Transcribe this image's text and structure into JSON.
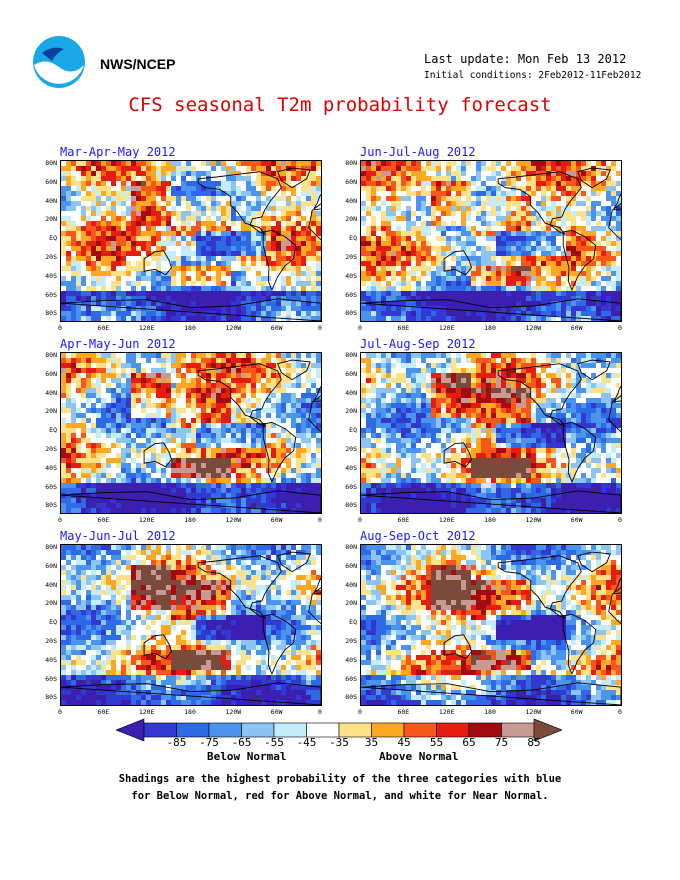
{
  "header": {
    "org": "NWS/NCEP",
    "last_update": "Last update: Mon Feb 13 2012",
    "initial_conditions": "Initial conditions: 2Feb2012-11Feb2012",
    "title": "CFS seasonal T2m probability forecast"
  },
  "panels": [
    {
      "title": "Mar-Apr-May 2012"
    },
    {
      "title": "Jun-Jul-Aug 2012"
    },
    {
      "title": "Apr-May-Jun 2012"
    },
    {
      "title": "Jul-Aug-Sep 2012"
    },
    {
      "title": "May-Jun-Jul 2012"
    },
    {
      "title": "Aug-Sep-Oct 2012"
    }
  ],
  "lat_labels": [
    "80N",
    "60N",
    "40N",
    "20N",
    "EQ",
    "20S",
    "40S",
    "60S",
    "80S"
  ],
  "lon_labels": [
    "0",
    "60E",
    "120E",
    "180",
    "120W",
    "60W",
    "0"
  ],
  "colorbar": {
    "labels": [
      "-85",
      "-75",
      "-65",
      "-55",
      "-45",
      "-35",
      "35",
      "45",
      "55",
      "65",
      "75",
      "85"
    ],
    "colors": [
      "#3a1fb0",
      "#3338d0",
      "#2f6ae6",
      "#4a94ee",
      "#8cc4f4",
      "#c4ecfa",
      "#ffffff",
      "#fde28a",
      "#fca822",
      "#f8561a",
      "#e41c12",
      "#a20c10",
      "#c89a94",
      "#7a4a3c"
    ],
    "below_label": "Below Normal",
    "above_label": "Above Normal"
  },
  "caption": [
    "Shadings are the highest probability of the three categories with blue",
    "for Below Normal, red for Above Normal, and white for Near Normal."
  ]
}
